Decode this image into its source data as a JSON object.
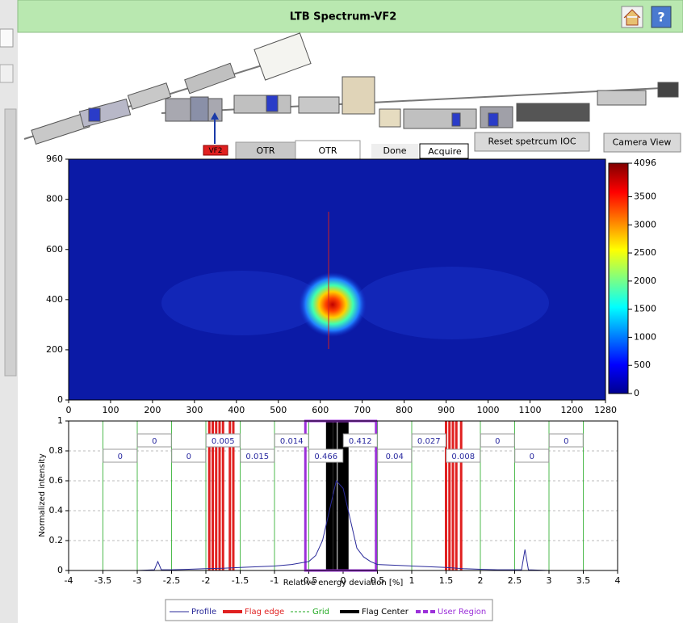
{
  "header": {
    "title": "LTB Spectrum-VF2"
  },
  "controls": {
    "screen_label": "VF2",
    "tabs": [
      "OTR",
      "OTR"
    ],
    "status": [
      "Done",
      "Acquire"
    ],
    "buttons": [
      "Reset spetrcum IOC",
      "Camera View"
    ]
  },
  "chart_data": [
    {
      "type": "heatmap",
      "colormap": "jet",
      "xlim": [
        0,
        1280
      ],
      "xticks": [
        0,
        100,
        200,
        300,
        400,
        500,
        600,
        700,
        800,
        900,
        1000,
        1100,
        1200,
        1280
      ],
      "ylim": [
        0,
        960
      ],
      "yticks": [
        0,
        200,
        400,
        600,
        800,
        960
      ],
      "clim": [
        0,
        4096
      ],
      "cticks": [
        0,
        500,
        1000,
        1500,
        2000,
        2500,
        3000,
        3500,
        4096
      ]
    },
    {
      "type": "line",
      "xlabel": "Relative energy deviation [%]",
      "ylabel": "Normalized intensity",
      "xlim": [
        -4,
        4
      ],
      "xticks": [
        -4,
        -3.5,
        -3,
        -2.5,
        -2,
        -1.5,
        -1,
        -0.5,
        0,
        0.5,
        1,
        1.5,
        2,
        2.5,
        3,
        3.5,
        4
      ],
      "ylim": [
        0,
        1
      ],
      "yticks": [
        0,
        0.2,
        0.4,
        0.6,
        0.8,
        1
      ],
      "ygrid": true,
      "series": [
        {
          "name": "Profile",
          "color": "#2a2a9a",
          "x": [
            -3.0,
            -2.75,
            -2.7,
            -2.65,
            -2.5,
            -2.25,
            -2.0,
            -1.75,
            -1.5,
            -1.25,
            -1.0,
            -0.75,
            -0.5,
            -0.4,
            -0.3,
            -0.2,
            -0.1,
            0.0,
            0.1,
            0.2,
            0.3,
            0.4,
            0.5,
            0.75,
            1.0,
            1.25,
            1.5,
            1.75,
            2.0,
            2.25,
            2.5,
            2.6,
            2.65,
            2.7,
            3.0
          ],
          "values": [
            0.0,
            0.005,
            0.06,
            0.005,
            0.005,
            0.008,
            0.012,
            0.015,
            0.02,
            0.025,
            0.03,
            0.04,
            0.06,
            0.1,
            0.2,
            0.4,
            0.6,
            0.55,
            0.35,
            0.15,
            0.09,
            0.06,
            0.04,
            0.035,
            0.03,
            0.025,
            0.02,
            0.012,
            0.008,
            0.005,
            0.005,
            0.005,
            0.14,
            0.005,
            0.0
          ]
        },
        {
          "name": "Flag edge",
          "color": "#e02020",
          "x": [
            -1.95,
            -1.9,
            -1.85,
            -1.8,
            -1.75,
            -1.65,
            -1.6,
            1.5,
            1.55,
            1.6,
            1.65,
            1.72
          ]
        },
        {
          "name": "Grid",
          "color": "#22aa22",
          "x": [
            -3.5,
            -3,
            -2.5,
            -2,
            -1.5,
            -1,
            -0.5,
            0,
            0.5,
            1,
            1.5,
            2,
            2.5,
            3,
            3.5
          ]
        },
        {
          "name": "Flag Center",
          "color": "#000000",
          "x": [
            -0.22,
            -0.18,
            -0.12,
            -0.05,
            0.0,
            0.05
          ]
        },
        {
          "name": "User Region",
          "color": "#9b30d9",
          "x": [
            -0.55,
            0.48
          ]
        }
      ],
      "bin_values": [
        0,
        0,
        0,
        0.005,
        0.015,
        0.014,
        0.466,
        0.412,
        0.04,
        0.027,
        0.008,
        0,
        0,
        0
      ]
    }
  ]
}
